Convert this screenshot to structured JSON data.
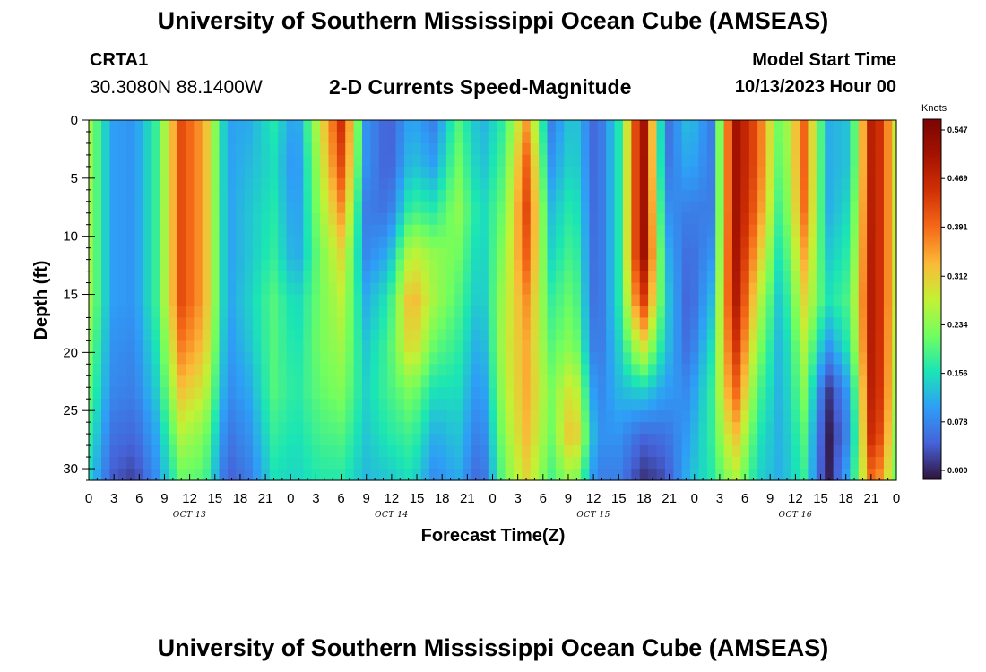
{
  "header": {
    "title": "University of Southern Mississippi Ocean Cube (AMSEAS)",
    "station_id": "CRTA1",
    "station_coords": "30.3080N  88.1400W",
    "plot_title": "2-D Currents Speed-Magnitude",
    "model_start_label": "Model Start Time",
    "model_start_value": "10/13/2023 Hour 00"
  },
  "footer": {
    "title_repeat": "University of Southern Mississippi Ocean Cube (AMSEAS)"
  },
  "chart_data": {
    "type": "heatmap",
    "xlabel": "Forecast Time(Z)",
    "ylabel": "Depth (ft)",
    "x_units": "forecast hour",
    "xlim": [
      0,
      96
    ],
    "ylim": [
      31,
      0
    ],
    "x_ticks": [
      0,
      3,
      6,
      9,
      12,
      15,
      18,
      21,
      24,
      27,
      30,
      33,
      36,
      39,
      42,
      45,
      48,
      51,
      54,
      57,
      60,
      63,
      66,
      69,
      72,
      75,
      78,
      81,
      84,
      87,
      90,
      93,
      96
    ],
    "x_tick_labels": [
      "0",
      "3",
      "6",
      "9",
      "12",
      "15",
      "18",
      "21",
      "0",
      "3",
      "6",
      "9",
      "12",
      "15",
      "18",
      "21",
      "0",
      "3",
      "6",
      "9",
      "12",
      "15",
      "18",
      "21",
      "0",
      "3",
      "6",
      "9",
      "12",
      "15",
      "18",
      "21",
      "0"
    ],
    "date_labels": [
      {
        "label": "OCT 13",
        "hour": 12
      },
      {
        "label": "OCT 14",
        "hour": 36
      },
      {
        "label": "OCT 15",
        "hour": 60
      },
      {
        "label": "OCT 16",
        "hour": 84
      }
    ],
    "y_ticks": [
      0,
      5,
      10,
      15,
      20,
      25,
      30
    ],
    "y_tick_labels": [
      "0",
      "5",
      "10",
      "15",
      "20",
      "25",
      "30"
    ],
    "colorbar": {
      "units": "Knots",
      "min": 0.0,
      "max": 0.547,
      "ticks": [
        0.547,
        0.469,
        0.391,
        0.312,
        0.234,
        0.156,
        0.078,
        0.0
      ],
      "tick_labels": [
        "0.547",
        "0.469",
        "0.391",
        "0.312",
        "0.234",
        "0.156",
        "0.078",
        "0.000"
      ]
    },
    "depths": [
      0,
      3,
      6,
      9,
      12,
      15,
      18,
      21,
      24,
      27,
      31
    ],
    "hours": [
      0,
      1,
      2,
      3,
      4,
      5,
      6,
      7,
      8,
      9,
      10,
      11,
      12,
      13,
      14,
      15,
      16,
      17,
      18,
      19,
      20,
      21,
      22,
      23,
      24,
      25,
      26,
      27,
      28,
      29,
      30,
      31,
      32,
      33,
      34,
      35,
      36,
      37,
      38,
      39,
      40,
      41,
      42,
      43,
      44,
      45,
      46,
      47,
      48,
      49,
      50,
      51,
      52,
      53,
      54,
      55,
      56,
      57,
      58,
      59,
      60,
      61,
      62,
      63,
      64,
      65,
      66,
      67,
      68,
      69,
      70,
      71,
      72,
      73,
      74,
      75,
      76,
      77,
      78,
      79,
      80,
      81,
      82,
      83,
      84,
      85,
      86,
      87,
      88,
      89,
      90,
      91,
      92,
      93,
      94,
      95,
      96
    ],
    "speed_profiles": [
      [
        0.25,
        0.25,
        0.25,
        0.25,
        0.25,
        0.23,
        0.21,
        0.18,
        0.15
      ],
      [
        0.11,
        0.11,
        0.11,
        0.11,
        0.11,
        0.1,
        0.09,
        0.07,
        0.05
      ],
      [
        0.1,
        0.1,
        0.1,
        0.1,
        0.1,
        0.09,
        0.08,
        0.06,
        0.03
      ],
      [
        0.19,
        0.19,
        0.19,
        0.19,
        0.19,
        0.17,
        0.15,
        0.12,
        0.1
      ],
      [
        0.41,
        0.41,
        0.41,
        0.41,
        0.41,
        0.37,
        0.32,
        0.26,
        0.21
      ],
      [
        0.34,
        0.34,
        0.34,
        0.34,
        0.34,
        0.32,
        0.28,
        0.23,
        0.2
      ],
      [
        0.11,
        0.11,
        0.11,
        0.11,
        0.11,
        0.1,
        0.09,
        0.07,
        0.05
      ],
      [
        0.12,
        0.13,
        0.14,
        0.14,
        0.15,
        0.14,
        0.12,
        0.1,
        0.08
      ],
      [
        0.17,
        0.16,
        0.17,
        0.18,
        0.2,
        0.2,
        0.2,
        0.18,
        0.16
      ],
      [
        0.1,
        0.09,
        0.1,
        0.11,
        0.15,
        0.16,
        0.17,
        0.16,
        0.15
      ],
      [
        0.28,
        0.26,
        0.24,
        0.22,
        0.22,
        0.22,
        0.21,
        0.19,
        0.17
      ],
      [
        0.45,
        0.42,
        0.36,
        0.3,
        0.27,
        0.25,
        0.23,
        0.2,
        0.17
      ],
      [
        0.1,
        0.1,
        0.08,
        0.09,
        0.12,
        0.14,
        0.15,
        0.14,
        0.13
      ],
      [
        0.05,
        0.05,
        0.07,
        0.12,
        0.17,
        0.19,
        0.19,
        0.17,
        0.14
      ],
      [
        0.12,
        0.14,
        0.19,
        0.28,
        0.34,
        0.31,
        0.23,
        0.19,
        0.16
      ],
      [
        0.08,
        0.11,
        0.17,
        0.24,
        0.25,
        0.21,
        0.16,
        0.12,
        0.09
      ],
      [
        0.2,
        0.22,
        0.24,
        0.22,
        0.2,
        0.18,
        0.16,
        0.14,
        0.12
      ],
      [
        0.12,
        0.13,
        0.15,
        0.14,
        0.13,
        0.11,
        0.09,
        0.07,
        0.05
      ],
      [
        0.18,
        0.2,
        0.22,
        0.24,
        0.26,
        0.27,
        0.26,
        0.24,
        0.22
      ],
      [
        0.35,
        0.4,
        0.42,
        0.4,
        0.36,
        0.34,
        0.34,
        0.33,
        0.3
      ],
      [
        0.08,
        0.1,
        0.13,
        0.15,
        0.18,
        0.2,
        0.22,
        0.21,
        0.19
      ],
      [
        0.15,
        0.16,
        0.18,
        0.2,
        0.22,
        0.24,
        0.3,
        0.34,
        0.25
      ],
      [
        0.05,
        0.05,
        0.05,
        0.05,
        0.05,
        0.06,
        0.08,
        0.1,
        0.08
      ],
      [
        0.17,
        0.17,
        0.17,
        0.17,
        0.17,
        0.15,
        0.13,
        0.1,
        0.08
      ],
      [
        0.52,
        0.52,
        0.52,
        0.52,
        0.44,
        0.3,
        0.15,
        0.06,
        0.02
      ],
      [
        0.06,
        0.07,
        0.1,
        0.13,
        0.15,
        0.14,
        0.11,
        0.07,
        0.04
      ],
      [
        0.14,
        0.12,
        0.08,
        0.06,
        0.05,
        0.06,
        0.09,
        0.11,
        0.13
      ],
      [
        0.08,
        0.08,
        0.08,
        0.1,
        0.13,
        0.16,
        0.18,
        0.18,
        0.17
      ],
      [
        0.5,
        0.5,
        0.5,
        0.5,
        0.49,
        0.45,
        0.4,
        0.33,
        0.26
      ],
      [
        0.4,
        0.4,
        0.38,
        0.33,
        0.28,
        0.24,
        0.2,
        0.17,
        0.15
      ],
      [
        0.2,
        0.19,
        0.17,
        0.15,
        0.13,
        0.12,
        0.12,
        0.12,
        0.12
      ],
      [
        0.39,
        0.39,
        0.38,
        0.34,
        0.3,
        0.26,
        0.23,
        0.2,
        0.18
      ],
      [
        0.12,
        0.12,
        0.12,
        0.14,
        0.16,
        0.1,
        0.02,
        0.0,
        0.0
      ],
      [
        0.14,
        0.14,
        0.16,
        0.18,
        0.2,
        0.18,
        0.12,
        0.1,
        0.14
      ],
      [
        0.5,
        0.5,
        0.5,
        0.5,
        0.5,
        0.5,
        0.5,
        0.48,
        0.4
      ],
      [
        0.28,
        0.28,
        0.28,
        0.28,
        0.28,
        0.27,
        0.26,
        0.24,
        0.22
      ]
    ]
  }
}
